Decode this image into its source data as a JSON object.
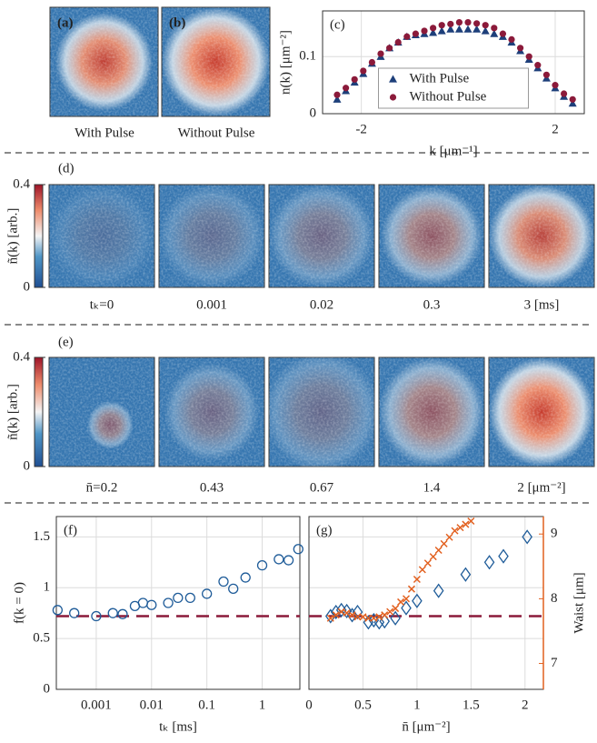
{
  "images": [
    {
      "label": "(a)",
      "caption": "With Pulse"
    },
    {
      "label": "(b)",
      "caption": "Without Pulse"
    }
  ],
  "row_d": {
    "label": "(d)",
    "colorbar": {
      "label": "ñ(k) [arb.]",
      "ticks": [
        0,
        0.4
      ]
    },
    "captions": [
      "tₖ=0",
      "0.001",
      "0.02",
      "0.3",
      "3 [ms]"
    ]
  },
  "row_e": {
    "label": "(e)",
    "colorbar": {
      "label": "ñ(k) [arb.]",
      "ticks": [
        0,
        0.4
      ]
    },
    "captions": [
      "n̄=0.2",
      "0.43",
      "0.67",
      "1.4",
      "2 [μm⁻²]"
    ]
  },
  "chart_data": [
    {
      "type": "scatter",
      "label": "(c)",
      "xlabel": "k [μm⁻¹]",
      "ylabel": "n(k) [μm⁻²]",
      "xlim": [
        -2.8,
        2.6
      ],
      "ylim": [
        0,
        0.18
      ],
      "xticks": [
        -2,
        2
      ],
      "yticks": [
        0,
        0.1
      ],
      "grid": true,
      "legend": "lower center",
      "x": [
        -2.5,
        -2.32,
        -2.14,
        -1.96,
        -1.78,
        -1.6,
        -1.42,
        -1.24,
        -1.06,
        -0.88,
        -0.7,
        -0.52,
        -0.34,
        -0.16,
        0.02,
        0.2,
        0.38,
        0.56,
        0.74,
        0.92,
        1.1,
        1.28,
        1.46,
        1.64,
        1.82,
        2.0,
        2.18,
        2.36
      ],
      "series": [
        {
          "name": "With Pulse",
          "color": "#1d3f7a",
          "marker": "triangle",
          "values": [
            0.025,
            0.04,
            0.055,
            0.07,
            0.088,
            0.1,
            0.115,
            0.125,
            0.135,
            0.138,
            0.14,
            0.142,
            0.145,
            0.148,
            0.148,
            0.148,
            0.148,
            0.145,
            0.14,
            0.135,
            0.125,
            0.11,
            0.095,
            0.08,
            0.062,
            0.045,
            0.03,
            0.018
          ]
        },
        {
          "name": "Without Pulse",
          "color": "#8b1a3a",
          "marker": "circle",
          "values": [
            0.033,
            0.045,
            0.06,
            0.075,
            0.09,
            0.105,
            0.115,
            0.125,
            0.135,
            0.14,
            0.145,
            0.15,
            0.155,
            0.157,
            0.16,
            0.16,
            0.158,
            0.155,
            0.15,
            0.14,
            0.13,
            0.115,
            0.1,
            0.085,
            0.068,
            0.05,
            0.035,
            0.025
          ]
        }
      ]
    },
    {
      "type": "scatter",
      "label": "(f)",
      "xlabel": "tₖ [ms]",
      "ylabel": "f(k = 0)",
      "xscale": "log",
      "xlim": [
        0.00019,
        4.8
      ],
      "ylim": [
        0,
        1.7
      ],
      "xticks": [
        0.001,
        0.01,
        0.1,
        1
      ],
      "yticks": [
        0,
        0.5,
        1,
        1.5
      ],
      "grid": true,
      "hline": 0.72,
      "hline_color": "#8b1a3a",
      "series": [
        {
          "color": "#1f5c99",
          "marker": "circle-open",
          "x": [
            0.0002,
            0.0004,
            0.001,
            0.002,
            0.003,
            0.005,
            0.007,
            0.01,
            0.02,
            0.03,
            0.05,
            0.1,
            0.2,
            0.3,
            0.5,
            1,
            2,
            3,
            4.5
          ],
          "values": [
            0.78,
            0.75,
            0.72,
            0.75,
            0.74,
            0.82,
            0.85,
            0.83,
            0.85,
            0.9,
            0.9,
            0.94,
            1.06,
            0.99,
            1.1,
            1.22,
            1.28,
            1.27,
            1.38
          ]
        }
      ]
    },
    {
      "type": "scatter",
      "label": "(g)",
      "xlabel": "n̄ [μm⁻²]",
      "y2label": "Waist [μm]",
      "y2color": "#e2601f",
      "xlim": [
        0,
        2.17
      ],
      "ylim": [
        0,
        1.7
      ],
      "y2lim": [
        6.6,
        9.27
      ],
      "xticks": [
        0,
        0.5,
        1,
        1.5,
        2
      ],
      "yticks": [
        0,
        0.5,
        1,
        1.5
      ],
      "y2ticks": [
        7,
        8,
        9
      ],
      "show_yticklabels": false,
      "grid": true,
      "hline": 0.72,
      "hline_color": "#8b1a3a",
      "series": [
        {
          "color": "#1f5c99",
          "marker": "diamond",
          "x": [
            0.2,
            0.25,
            0.3,
            0.35,
            0.4,
            0.45,
            0.55,
            0.6,
            0.65,
            0.7,
            0.8,
            0.9,
            1.0,
            1.2,
            1.45,
            1.67,
            1.8,
            2.02
          ],
          "values": [
            0.72,
            0.76,
            0.78,
            0.77,
            0.73,
            0.76,
            0.66,
            0.68,
            0.66,
            0.67,
            0.7,
            0.8,
            0.87,
            0.97,
            1.13,
            1.25,
            1.31,
            1.5
          ]
        },
        {
          "color": "#e2601f",
          "marker": "x",
          "axis": "y2",
          "x": [
            0.2,
            0.25,
            0.3,
            0.35,
            0.4,
            0.45,
            0.5,
            0.55,
            0.6,
            0.65,
            0.7,
            0.75,
            0.8,
            0.85,
            0.9,
            0.95,
            1.0,
            1.05,
            1.1,
            1.15,
            1.2,
            1.25,
            1.3,
            1.35,
            1.4,
            1.45,
            1.5
          ],
          "values": [
            7.7,
            7.75,
            7.8,
            7.78,
            7.75,
            7.72,
            7.72,
            7.7,
            7.7,
            7.72,
            7.75,
            7.8,
            7.85,
            7.95,
            8.0,
            8.15,
            8.3,
            8.45,
            8.55,
            8.65,
            8.75,
            8.85,
            8.95,
            9.05,
            9.1,
            9.15,
            9.2
          ]
        }
      ]
    }
  ]
}
